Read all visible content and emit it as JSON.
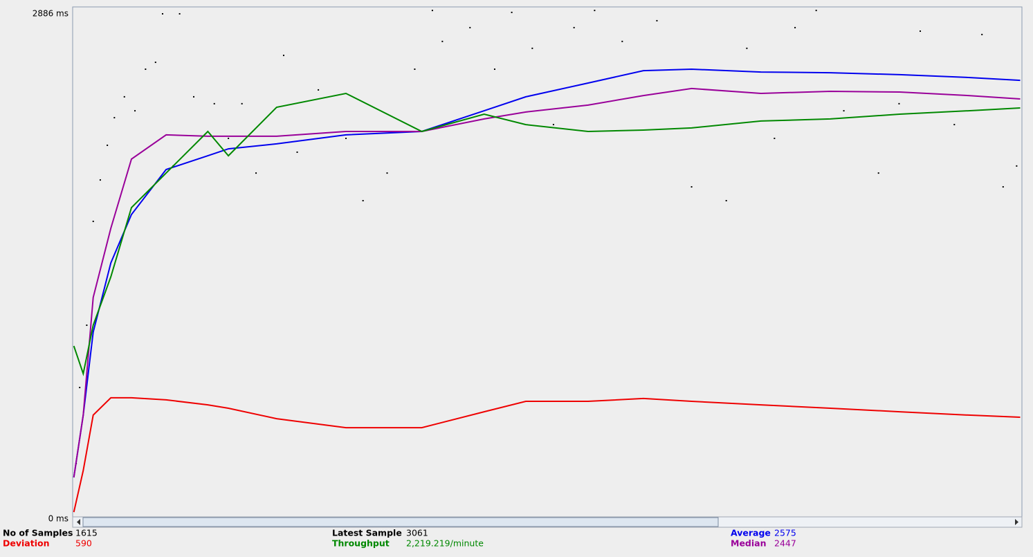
{
  "chart_data": {
    "type": "line",
    "ylim": [
      0,
      2886
    ],
    "yticks": [
      {
        "value": 2886,
        "label": "2886 ms"
      },
      {
        "value": 0,
        "label": "0 ms"
      }
    ],
    "xlim": [
      0,
      1615
    ],
    "x": [
      2,
      18,
      35,
      65,
      100,
      159,
      230,
      265,
      347,
      465,
      594,
      700,
      771,
      877,
      971,
      1053,
      1171,
      1289,
      1407,
      1524,
      1612
    ],
    "series": [
      {
        "name": "Average",
        "color": "#0000ee",
        "values": [
          227,
          579,
          1048,
          1439,
          1713,
          1967,
          2045,
          2084,
          2112,
          2163,
          2182,
          2299,
          2378,
          2456,
          2526,
          2534,
          2518,
          2514,
          2503,
          2487,
          2471
        ]
      },
      {
        "name": "Median",
        "color": "#990099",
        "values": [
          227,
          579,
          1244,
          1635,
          2026,
          2163,
          2155,
          2155,
          2155,
          2182,
          2182,
          2253,
          2292,
          2331,
          2385,
          2425,
          2397,
          2409,
          2405,
          2385,
          2366
        ]
      },
      {
        "name": "Deviation",
        "color": "#ee0000",
        "values": [
          31,
          266,
          579,
          677,
          677,
          665,
          637,
          618,
          559,
          508,
          508,
          598,
          657,
          657,
          673,
          657,
          637,
          618,
          598,
          579,
          567
        ]
      },
      {
        "name": "Throughput",
        "color": "#008800",
        "values": [
          970,
          813,
          1087,
          1361,
          1752,
          1947,
          2182,
          2045,
          2319,
          2397,
          2182,
          2280,
          2221,
          2182,
          2190,
          2202,
          2241,
          2253,
          2280,
          2299,
          2315
        ]
      }
    ],
    "points": {
      "color": "#000000",
      "x": [
        6,
        12,
        24,
        35,
        47,
        59,
        71,
        88,
        106,
        124,
        141,
        153,
        182,
        171,
        206,
        241,
        265,
        288,
        312,
        359,
        382,
        418,
        465,
        494,
        535,
        582,
        612,
        629,
        676,
        718,
        747,
        782,
        818,
        853,
        888,
        935,
        994,
        1053,
        1112,
        1147,
        1194,
        1229,
        1265,
        1312,
        1371,
        1406,
        1442,
        1500,
        1547,
        1583,
        1606
      ],
      "values": [
        305,
        735,
        1087,
        1674,
        1908,
        2104,
        2260,
        2378,
        2299,
        2534,
        2573,
        2847,
        2847,
        1987,
        2378,
        2339,
        2143,
        2339,
        1947,
        2612,
        2065,
        2417,
        2143,
        1791,
        1947,
        2534,
        2866,
        2691,
        2769,
        2534,
        2855,
        2652,
        2221,
        2769,
        2866,
        2691,
        2808,
        1869,
        1791,
        2652,
        2143,
        2769,
        2866,
        2299,
        1947,
        2339,
        2749,
        2221,
        2730,
        1869,
        1987
      ]
    }
  },
  "summary": [
    {
      "label": "No of Samples",
      "value": 1615,
      "color": "#000000"
    },
    {
      "label": "Deviation",
      "value": 590,
      "color": "#ee0000"
    },
    {
      "label": "Latest Sample",
      "value": 3061,
      "color": "#000000"
    },
    {
      "label": "Throughput",
      "value": "2,219.219/minute",
      "color": "#008800"
    },
    {
      "label": "Average",
      "value": 2575,
      "color": "#0000ee"
    },
    {
      "label": "Median",
      "value": 2447,
      "color": "#990099"
    }
  ]
}
